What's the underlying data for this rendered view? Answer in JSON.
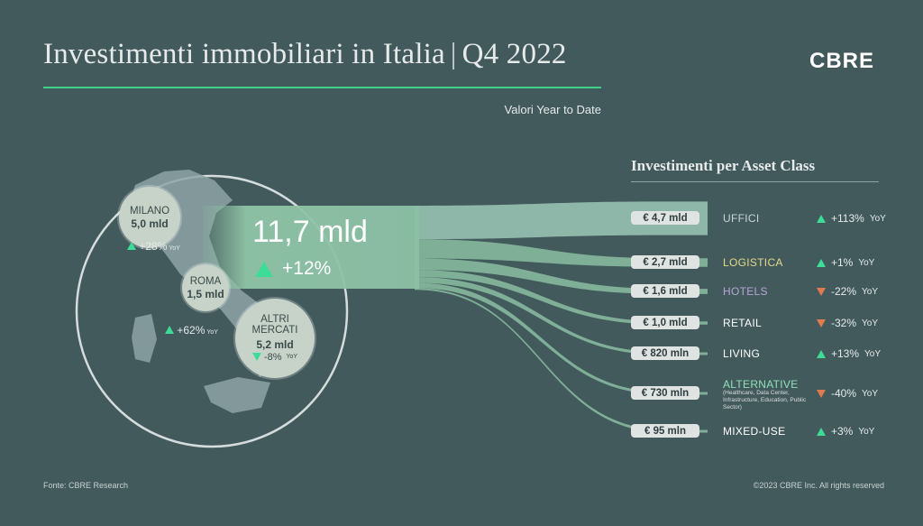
{
  "title": "Investimenti immobiliari in Italia",
  "title_separator": "|",
  "title_period": "Q4 2022",
  "subtitle": "Valori Year to Date",
  "logo": "CBRE",
  "section_title": "Investimenti  per Asset Class",
  "total": {
    "value": "11,7 mld",
    "change": "+12%"
  },
  "cities": [
    {
      "name": "MILANO",
      "value": "5,0 mld",
      "change": "+28%",
      "direction": "up",
      "unit": "YoY"
    },
    {
      "name": "ROMA",
      "value": "1,5 mld",
      "change": "+62%",
      "direction": "up",
      "unit": "YoY"
    },
    {
      "name": "ALTRI MERCATI",
      "value": "5,2 mld",
      "change": "-8%",
      "direction": "down",
      "unit": "YoY"
    }
  ],
  "chart_data": {
    "type": "sankey",
    "source": "11,7 mld",
    "unit_change": "YoY",
    "categories": [
      "UFFICI",
      "LOGISTICA",
      "HOTELS",
      "RETAIL",
      "LIVING",
      "ALTERNATIVE",
      "MIXED-USE"
    ],
    "values_eur_mln": [
      4700,
      2700,
      1600,
      1000,
      820,
      730,
      95
    ],
    "labels": [
      "€ 4,7 mld",
      "€ 2,7 mld",
      "€ 1,6 mld",
      "€ 1,0 mld",
      "€ 820 mln",
      "€ 730 mln",
      "€ 95 mln"
    ],
    "yoy_change_pct": [
      113,
      1,
      -22,
      -32,
      13,
      -40,
      3
    ],
    "yoy_labels": [
      "+113%",
      "+1%",
      "-22%",
      "-32%",
      "+13%",
      "-40%",
      "+3%"
    ],
    "category_colors": [
      "#c8d6d6",
      "#e3d98a",
      "#b9a4d8",
      "#ffffff",
      "#ffffff",
      "#8fe0b6",
      "#ffffff"
    ],
    "alternative_note": "(Healthcare, Data Center, Infrastructure, Education, Public Sector)"
  },
  "colors": {
    "background": "#435a5c",
    "accent": "#3fd08c",
    "up": "#3ddc97",
    "down": "#e07a4f"
  },
  "footer": {
    "source": "Fonte: CBRE Research",
    "copyright": "©2023 CBRE Inc. All rights reserved"
  }
}
